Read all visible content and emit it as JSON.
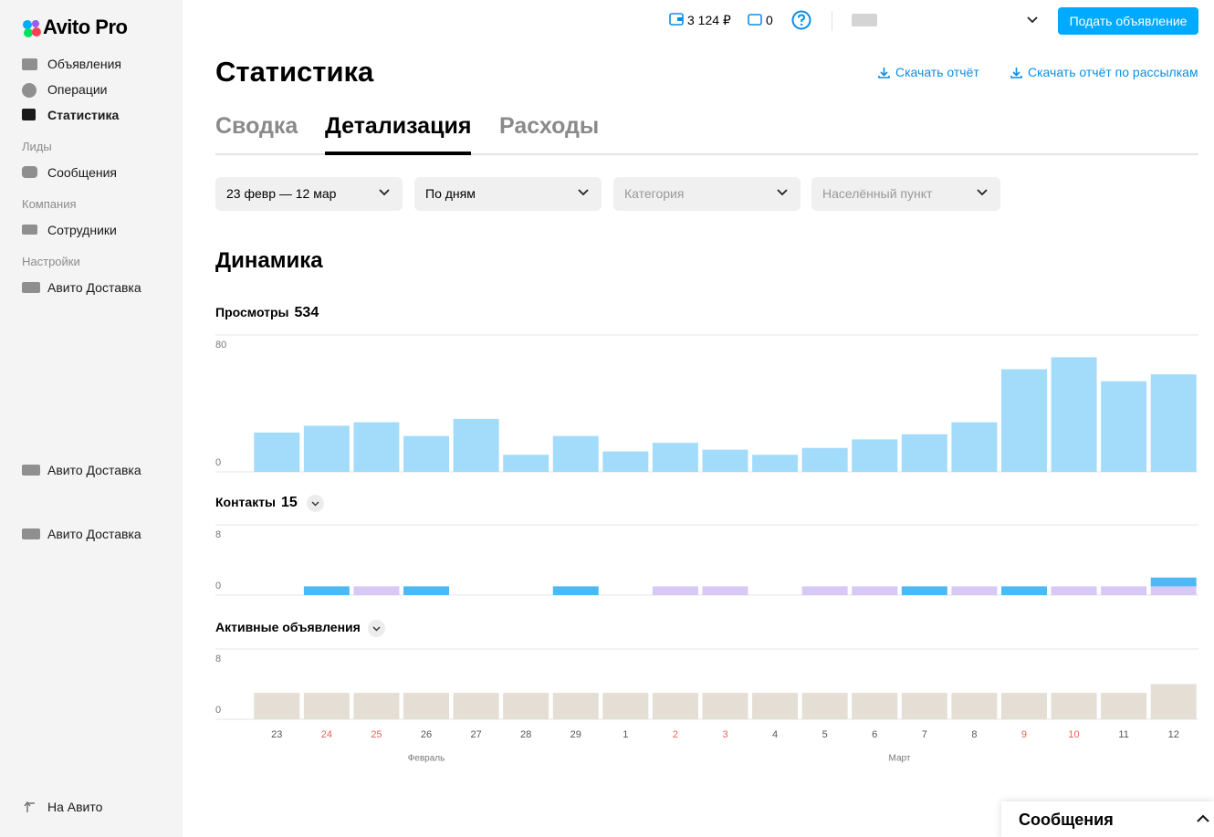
{
  "sidebar": {
    "logo": "Avito Pro",
    "items": [
      "Объявления",
      "Операции",
      "Статистика"
    ],
    "sections": [
      {
        "title": "Лиды",
        "items": [
          "Сообщения"
        ]
      },
      {
        "title": "Компания",
        "items": [
          "Сотрудники"
        ]
      },
      {
        "title": "Настройки",
        "items": [
          "Авито Доставка"
        ]
      }
    ],
    "extra_items": [
      "Авито Доставка",
      "Авито Доставка"
    ],
    "back_link": "На Авито"
  },
  "header": {
    "balance": "3 124 ₽",
    "promo": "0",
    "button": "Подать объявление"
  },
  "page": {
    "title": "Статистика",
    "links": [
      "Скачать отчёт",
      "Скачать отчёт по рассылкам"
    ],
    "tabs": [
      "Сводка",
      "Детализация",
      "Расходы"
    ],
    "filters": [
      "23 февр — 12 мар",
      "По дням",
      "Категория",
      "Населённый пункт"
    ],
    "section_title": "Динамика"
  },
  "chart_data": [
    {
      "type": "bar",
      "title": "Просмотры",
      "total": 534,
      "color": "#a3dcfa",
      "ylim": [
        0,
        80
      ],
      "yticks": [
        0,
        80
      ],
      "values": [
        23,
        27,
        29,
        21,
        31,
        10,
        21,
        12,
        17,
        13,
        10,
        14,
        19,
        22,
        29,
        60,
        67,
        53,
        57
      ]
    },
    {
      "type": "stacked_bar",
      "title": "Контакты",
      "total": 15,
      "ylim": [
        0,
        8
      ],
      "yticks": [
        0,
        8
      ],
      "series": [
        {
          "color": "#d8c8f6",
          "values": [
            0,
            0,
            1,
            0,
            0,
            0,
            0,
            0,
            1,
            1,
            0,
            1,
            1,
            0,
            1,
            0,
            1,
            1,
            1
          ]
        },
        {
          "color": "#4cb9f5",
          "values": [
            0,
            1,
            0,
            1,
            0,
            0,
            1,
            0,
            0,
            0,
            0,
            0,
            0,
            1,
            0,
            1,
            0,
            0,
            1
          ]
        }
      ]
    },
    {
      "type": "bar",
      "title": "Активные объявления",
      "color": "#e4ded4",
      "ylim": [
        0,
        8
      ],
      "yticks": [
        0,
        8
      ],
      "values": [
        3,
        3,
        3,
        3,
        3,
        3,
        3,
        3,
        3,
        3,
        3,
        3,
        3,
        3,
        3,
        3,
        3,
        3,
        4
      ],
      "categories": [
        "23",
        "24",
        "25",
        "26",
        "27",
        "28",
        "29",
        "1",
        "2",
        "3",
        "4",
        "5",
        "6",
        "7",
        "8",
        "9",
        "10",
        "11",
        "12"
      ],
      "category_colors": [
        "#555555",
        "#e8635c",
        "#e8635c",
        "#555555",
        "#555555",
        "#555555",
        "#555555",
        "#555555",
        "#e8635c",
        "#e8635c",
        "#555555",
        "#555555",
        "#555555",
        "#555555",
        "#555555",
        "#e8635c",
        "#e8635c",
        "#555555",
        "#555555"
      ],
      "months": [
        {
          "label": "Февраль",
          "count": 7
        },
        {
          "label": "Март",
          "count": 12
        }
      ]
    }
  ],
  "messages_panel": "Сообщения"
}
